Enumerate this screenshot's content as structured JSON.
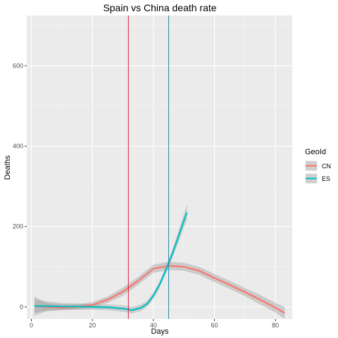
{
  "chart_data": {
    "type": "line",
    "title": "Spain vs China death rate",
    "xlabel": "Days",
    "ylabel": "Deaths",
    "xlim": [
      -1.5,
      85.5
    ],
    "ylim": [
      -30,
      725
    ],
    "x_ticks": [
      0,
      20,
      40,
      60,
      80
    ],
    "y_ticks": [
      0,
      200,
      400,
      600
    ],
    "grid": true,
    "legend": {
      "title": "GeoId",
      "placement": "right",
      "entries": [
        "CN",
        "ES"
      ]
    },
    "series": [
      {
        "name": "CN",
        "color": "#F8766D",
        "x": [
          1,
          5,
          10,
          15,
          20,
          25,
          30,
          35,
          40,
          45,
          50,
          55,
          60,
          65,
          70,
          75,
          80,
          83
        ],
        "y": [
          2,
          0,
          -2,
          0,
          5,
          18,
          38,
          65,
          95,
          102,
          100,
          90,
          72,
          55,
          37,
          18,
          -2,
          -15
        ],
        "ci_low": [
          -22,
          -10,
          -8,
          -6,
          -2,
          10,
          28,
          55,
          85,
          92,
          90,
          80,
          62,
          45,
          27,
          6,
          -14,
          -30
        ],
        "ci_high": [
          26,
          10,
          6,
          6,
          12,
          26,
          48,
          75,
          105,
          112,
          110,
          100,
          82,
          65,
          47,
          30,
          10,
          0
        ]
      },
      {
        "name": "ES",
        "color": "#00BFC4",
        "x": [
          1,
          5,
          10,
          15,
          20,
          25,
          30,
          33,
          36,
          38,
          40,
          42,
          44,
          46,
          48,
          50,
          51
        ],
        "y": [
          2,
          2,
          1,
          1,
          0,
          -1,
          -4,
          -8,
          -2,
          8,
          28,
          55,
          90,
          128,
          170,
          215,
          235
        ],
        "ci_low": [
          -14,
          -10,
          -8,
          -7,
          -7,
          -8,
          -12,
          -16,
          -10,
          1,
          20,
          47,
          82,
          118,
          156,
          198,
          215
        ],
        "ci_high": [
          18,
          14,
          10,
          9,
          7,
          6,
          4,
          0,
          6,
          15,
          36,
          63,
          98,
          138,
          184,
          232,
          255
        ]
      }
    ],
    "vlines": [
      {
        "x": 31.8,
        "color": "#DC143C"
      },
      {
        "x": 45,
        "color": "#2E86AB"
      }
    ]
  }
}
